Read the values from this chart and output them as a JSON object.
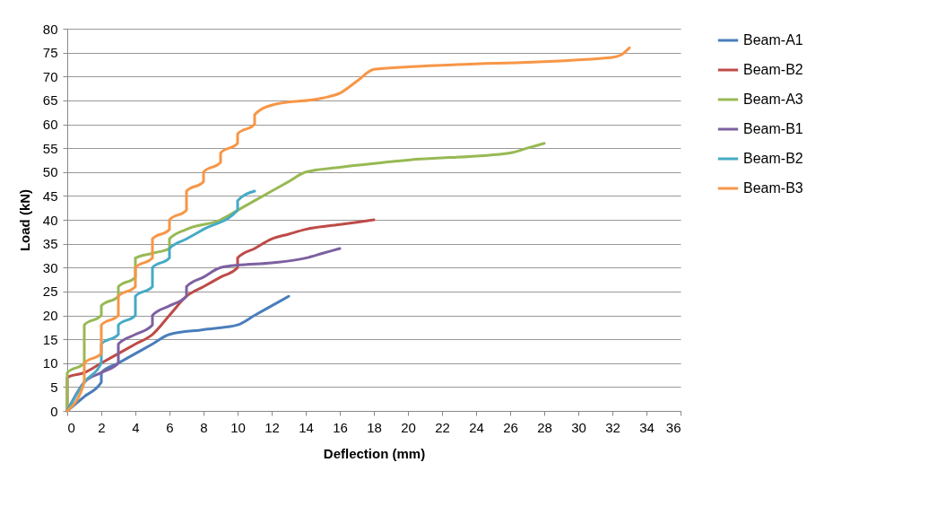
{
  "chart_data": {
    "type": "line",
    "xlabel": "Deflection (mm)",
    "ylabel": "Load (kN)",
    "xlim": [
      0,
      36
    ],
    "ylim": [
      0,
      80
    ],
    "xticks": [
      0,
      2,
      4,
      6,
      8,
      10,
      12,
      14,
      16,
      18,
      20,
      22,
      24,
      26,
      28,
      30,
      32,
      34,
      36
    ],
    "yticks": [
      0,
      5,
      10,
      15,
      20,
      25,
      30,
      35,
      40,
      45,
      50,
      55,
      60,
      65,
      70,
      75,
      80
    ],
    "grid": "y",
    "legend": "right",
    "marker": "none",
    "line_style": "solid",
    "series": [
      {
        "name": "Beam-A1",
        "color": "#4a7ebb",
        "x": [
          0,
          1,
          2,
          2,
          3,
          4,
          5,
          6,
          8,
          10,
          11,
          12,
          13
        ],
        "values": [
          0,
          3,
          6,
          8,
          10,
          12,
          14,
          16,
          17,
          18,
          20,
          22,
          24
        ]
      },
      {
        "name": "Beam-B2",
        "color": "#be4b48",
        "x": [
          0,
          0,
          1,
          2,
          3,
          4,
          5,
          6,
          7,
          8,
          9,
          10,
          10,
          11,
          12,
          13,
          14,
          16,
          18
        ],
        "values": [
          0,
          7,
          8,
          10,
          12,
          14,
          16,
          20,
          24,
          26,
          28,
          30,
          32,
          34,
          36,
          37,
          38,
          39,
          40
        ]
      },
      {
        "name": "Beam-A3",
        "color": "#98b954",
        "x": [
          0,
          0,
          1,
          1,
          2,
          2,
          3,
          3,
          4,
          4,
          5,
          6,
          6,
          7,
          9,
          10,
          12,
          13,
          14,
          16,
          20,
          26,
          27,
          28
        ],
        "values": [
          0,
          8,
          10,
          18,
          20,
          22,
          24,
          26,
          28,
          32,
          33,
          34,
          36,
          38,
          40,
          42,
          46,
          48,
          50,
          51,
          52.5,
          54,
          55,
          56
        ]
      },
      {
        "name": "Beam-B1",
        "color": "#7d60a0",
        "x": [
          0,
          1,
          2,
          3,
          3,
          4,
          5,
          5,
          6,
          7,
          7,
          8,
          9,
          10,
          12,
          14,
          15,
          16
        ],
        "values": [
          0,
          6,
          8,
          10,
          14,
          16,
          18,
          20,
          22,
          24,
          26,
          28,
          30,
          30.5,
          31,
          32,
          33,
          34
        ]
      },
      {
        "name": "Beam-B2",
        "color": "#46aac5",
        "x": [
          0,
          1,
          2,
          2,
          3,
          3,
          4,
          4,
          5,
          5,
          6,
          6,
          7,
          8,
          10,
          10,
          11
        ],
        "values": [
          0,
          6,
          10,
          14,
          16,
          18,
          20,
          24,
          26,
          30,
          32,
          34,
          36,
          38,
          42,
          44,
          46
        ]
      },
      {
        "name": "Beam-B3",
        "color": "#f79646",
        "x": [
          0,
          1,
          1,
          2,
          2,
          3,
          3,
          4,
          4,
          5,
          5,
          6,
          6,
          7,
          7,
          8,
          8,
          9,
          9,
          10,
          10,
          11,
          11,
          12,
          15,
          16,
          17,
          18,
          20,
          32,
          32.5,
          33
        ],
        "values": [
          0,
          6,
          10,
          12,
          18,
          20,
          24,
          26,
          30,
          32,
          36,
          38,
          40,
          42,
          46,
          48,
          50,
          52,
          54,
          56,
          58,
          60,
          62,
          64,
          65.5,
          66.5,
          69,
          71.5,
          72,
          74,
          74.5,
          76
        ]
      }
    ]
  }
}
